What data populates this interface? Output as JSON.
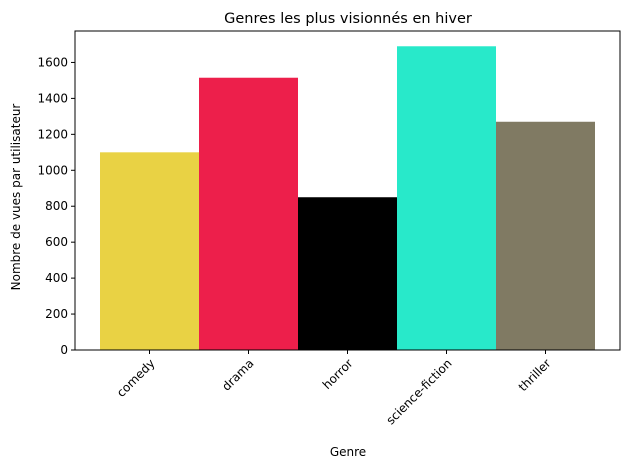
{
  "chart_data": {
    "type": "bar",
    "title": "Genres les plus visionnés en hiver",
    "xlabel": "Genre",
    "ylabel": "Nombre de vues par utilisateur",
    "categories": [
      "comedy",
      "drama",
      "horror",
      "science-fiction",
      "thriller"
    ],
    "values": [
      1100,
      1515,
      850,
      1690,
      1270
    ],
    "colors": [
      "#e9d244",
      "#ed1f4b",
      "#000000",
      "#28e9ca",
      "#807a63"
    ],
    "ylim": [
      0,
      1775
    ],
    "yticks": [
      0,
      200,
      400,
      600,
      800,
      1000,
      1200,
      1400,
      1600
    ],
    "grid": false,
    "legend": "none"
  }
}
